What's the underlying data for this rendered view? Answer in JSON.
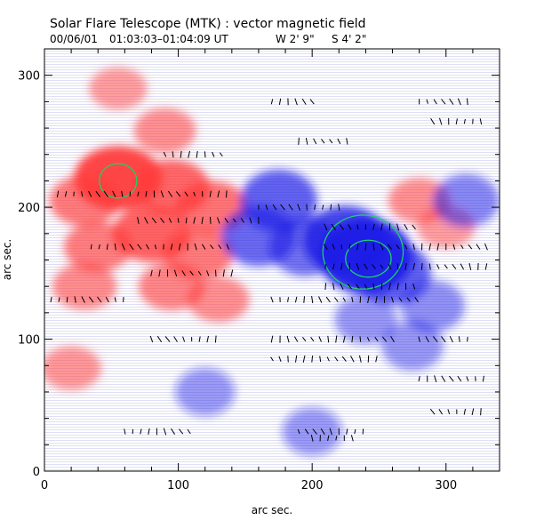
{
  "header": {
    "title": "Solar Flare Telescope (MTK) : vector magnetic field",
    "date": "00/06/01",
    "time_range": "01:03:03–01:04:09 UT",
    "position_w": "W 2' 9\"",
    "position_s": "S 4' 2\""
  },
  "chart_data": {
    "type": "heatmap",
    "title": "Solar Flare Telescope (MTK) : vector magnetic field",
    "xlabel": "arc sec.",
    "ylabel": "arc sec.",
    "xlim": [
      0,
      340
    ],
    "ylim": [
      0,
      320
    ],
    "xticks": [
      0,
      100,
      200,
      300
    ],
    "yticks": [
      0,
      100,
      200,
      300
    ],
    "xtick_labels": [
      "0",
      "100",
      "200",
      "300"
    ],
    "ytick_labels": [
      "0",
      "100",
      "200",
      "300"
    ],
    "colors": {
      "positive_polarity": "#ff3b3b",
      "negative_polarity": "#1f1fe6",
      "contour": "#19d36a",
      "vector": "#000000",
      "frame": "#000000"
    },
    "positive_regions": [
      {
        "x": 55,
        "y": 222,
        "strength": 1.0
      },
      {
        "x": 30,
        "y": 205,
        "strength": 0.55
      },
      {
        "x": 95,
        "y": 215,
        "strength": 0.7
      },
      {
        "x": 125,
        "y": 200,
        "strength": 0.6
      },
      {
        "x": 80,
        "y": 180,
        "strength": 0.75
      },
      {
        "x": 115,
        "y": 165,
        "strength": 0.55
      },
      {
        "x": 40,
        "y": 170,
        "strength": 0.5
      },
      {
        "x": 95,
        "y": 140,
        "strength": 0.45
      },
      {
        "x": 130,
        "y": 130,
        "strength": 0.35
      },
      {
        "x": 30,
        "y": 140,
        "strength": 0.4
      },
      {
        "x": 90,
        "y": 258,
        "strength": 0.35
      },
      {
        "x": 55,
        "y": 290,
        "strength": 0.25
      },
      {
        "x": 280,
        "y": 205,
        "strength": 0.35
      },
      {
        "x": 300,
        "y": 185,
        "strength": 0.25
      },
      {
        "x": 20,
        "y": 78,
        "strength": 0.3
      }
    ],
    "negative_regions": [
      {
        "x": 240,
        "y": 163,
        "strength": 1.0
      },
      {
        "x": 225,
        "y": 175,
        "strength": 0.8
      },
      {
        "x": 260,
        "y": 150,
        "strength": 0.6
      },
      {
        "x": 175,
        "y": 205,
        "strength": 0.6
      },
      {
        "x": 160,
        "y": 178,
        "strength": 0.55
      },
      {
        "x": 195,
        "y": 170,
        "strength": 0.5
      },
      {
        "x": 315,
        "y": 205,
        "strength": 0.35
      },
      {
        "x": 290,
        "y": 125,
        "strength": 0.3
      },
      {
        "x": 240,
        "y": 115,
        "strength": 0.25
      },
      {
        "x": 275,
        "y": 95,
        "strength": 0.25
      },
      {
        "x": 120,
        "y": 60,
        "strength": 0.2
      },
      {
        "x": 200,
        "y": 30,
        "strength": 0.2
      }
    ],
    "contours": [
      {
        "x": 55,
        "y": 220,
        "rx": 14,
        "ry": 13
      },
      {
        "x": 238,
        "y": 166,
        "rx": 30,
        "ry": 28
      },
      {
        "x": 242,
        "y": 161,
        "rx": 17,
        "ry": 14
      }
    ],
    "vector_rows": [
      {
        "y": 210,
        "x_start": 10,
        "x_end": 140,
        "step": 6
      },
      {
        "y": 190,
        "x_start": 70,
        "x_end": 160,
        "step": 6
      },
      {
        "y": 170,
        "x_start": 35,
        "x_end": 140,
        "step": 6
      },
      {
        "y": 150,
        "x_start": 80,
        "x_end": 140,
        "step": 6
      },
      {
        "y": 130,
        "x_start": 5,
        "x_end": 60,
        "step": 6
      },
      {
        "y": 240,
        "x_start": 90,
        "x_end": 135,
        "step": 6
      },
      {
        "y": 200,
        "x_start": 160,
        "x_end": 220,
        "step": 6
      },
      {
        "y": 185,
        "x_start": 210,
        "x_end": 280,
        "step": 6
      },
      {
        "y": 170,
        "x_start": 210,
        "x_end": 330,
        "step": 6
      },
      {
        "y": 155,
        "x_start": 210,
        "x_end": 330,
        "step": 6
      },
      {
        "y": 140,
        "x_start": 210,
        "x_end": 280,
        "step": 6
      },
      {
        "y": 130,
        "x_start": 170,
        "x_end": 280,
        "step": 6
      },
      {
        "y": 280,
        "x_start": 170,
        "x_end": 200,
        "step": 6
      },
      {
        "y": 280,
        "x_start": 280,
        "x_end": 320,
        "step": 6
      },
      {
        "y": 265,
        "x_start": 290,
        "x_end": 330,
        "step": 6
      },
      {
        "y": 250,
        "x_start": 190,
        "x_end": 230,
        "step": 6
      },
      {
        "y": 100,
        "x_start": 170,
        "x_end": 260,
        "step": 6
      },
      {
        "y": 100,
        "x_start": 280,
        "x_end": 320,
        "step": 6
      },
      {
        "y": 85,
        "x_start": 170,
        "x_end": 250,
        "step": 6
      },
      {
        "y": 100,
        "x_start": 80,
        "x_end": 130,
        "step": 6
      },
      {
        "y": 70,
        "x_start": 280,
        "x_end": 330,
        "step": 6
      },
      {
        "y": 45,
        "x_start": 290,
        "x_end": 330,
        "step": 6
      },
      {
        "y": 30,
        "x_start": 60,
        "x_end": 110,
        "step": 6
      },
      {
        "y": 30,
        "x_start": 190,
        "x_end": 240,
        "step": 6
      },
      {
        "y": 25,
        "x_start": 200,
        "x_end": 230,
        "step": 6
      }
    ]
  }
}
